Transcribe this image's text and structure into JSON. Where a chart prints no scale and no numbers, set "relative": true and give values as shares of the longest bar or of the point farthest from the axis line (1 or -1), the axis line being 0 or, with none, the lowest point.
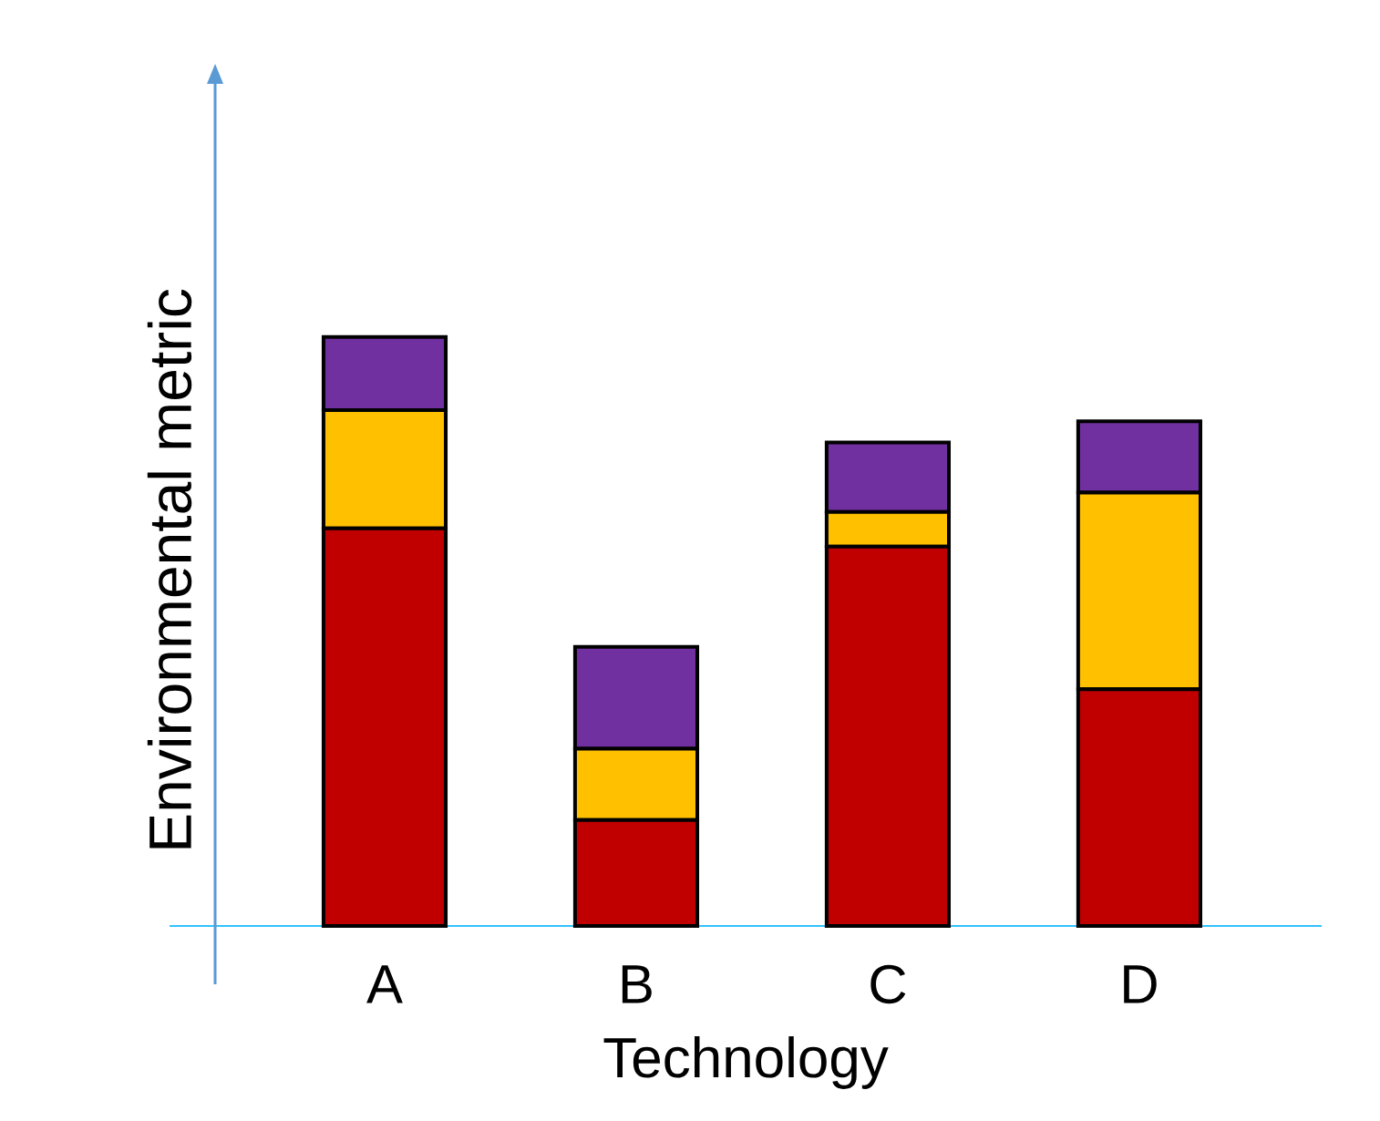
{
  "chart_data": {
    "type": "bar",
    "stacked": true,
    "relative": true,
    "xlabel": "Technology",
    "ylabel": "Environmental metric",
    "categories": [
      "A",
      "B",
      "C",
      "D"
    ],
    "series": [
      {
        "color": "#c00000",
        "values": [
          0.675,
          0.18,
          0.644,
          0.402
        ]
      },
      {
        "color": "#ffc000",
        "values": [
          0.201,
          0.121,
          0.059,
          0.334
        ]
      },
      {
        "color": "#7030a0",
        "values": [
          0.124,
          0.173,
          0.118,
          0.121
        ]
      }
    ]
  }
}
